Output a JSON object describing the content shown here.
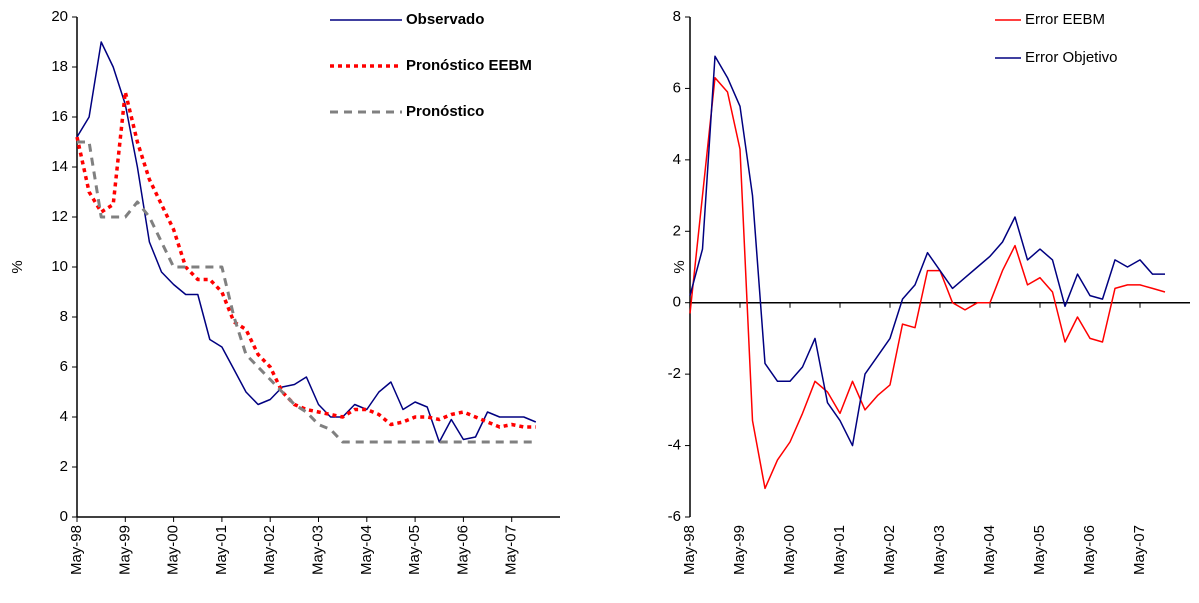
{
  "chart_data": [
    {
      "type": "line",
      "ylabel": "%",
      "categories": [
        "May-98",
        null,
        null,
        null,
        "May-99",
        null,
        null,
        null,
        "May-00",
        null,
        null,
        null,
        "May-01",
        null,
        null,
        null,
        "May-02",
        null,
        null,
        null,
        "May-03",
        null,
        null,
        null,
        "May-04",
        null,
        null,
        null,
        "May-05",
        null,
        null,
        null,
        "May-06",
        null,
        null,
        null,
        "May-07",
        null,
        null
      ],
      "ylim": [
        0,
        20
      ],
      "yticks": [
        0,
        2,
        4,
        6,
        8,
        10,
        12,
        14,
        16,
        18,
        20
      ],
      "legend": "upper center",
      "legend_bold": true,
      "series": [
        {
          "name": "Observado",
          "color": "#000080",
          "line_style": "solid",
          "values": [
            15.2,
            16,
            19,
            18,
            16.5,
            14,
            11,
            9.8,
            9.3,
            8.9,
            8.9,
            7.1,
            6.8,
            5.9,
            5.0,
            4.5,
            4.7,
            5.2,
            5.3,
            5.6,
            4.5,
            4.0,
            4.0,
            4.5,
            4.3,
            5.0,
            5.4,
            4.3,
            4.6,
            4.4,
            3.0,
            3.9,
            3.1,
            3.2,
            4.2,
            4.0,
            4.0,
            4.0,
            3.8
          ]
        },
        {
          "name": "Pronóstico EEBM",
          "color": "#ff0000",
          "line_style": "dotted",
          "values": [
            15.2,
            13,
            12.2,
            12.5,
            17,
            15,
            13.5,
            12.5,
            11.5,
            10,
            9.5,
            9.5,
            9,
            7.8,
            7.5,
            6.5,
            6.0,
            5.0,
            4.5,
            4.3,
            4.2,
            4.1,
            4.0,
            4.3,
            4.3,
            4.1,
            3.7,
            3.8,
            4.0,
            4.0,
            3.9,
            4.1,
            4.2,
            4.0,
            3.8,
            3.6,
            3.7,
            3.6,
            3.6
          ]
        },
        {
          "name": "Pronóstico",
          "color": "#808080",
          "line_style": "dashed",
          "values": [
            15,
            15,
            12,
            12,
            12,
            12.6,
            12,
            11,
            10,
            10,
            10,
            10,
            10,
            8,
            6.5,
            6,
            5.5,
            5,
            4.5,
            4.2,
            3.7,
            3.5,
            3.0,
            3.0,
            3.0,
            3.0,
            3.0,
            3.0,
            3.0,
            3.0,
            3.0,
            3.0,
            3.0,
            3.0,
            3.0,
            3.0,
            3.0,
            3.0,
            3.0
          ]
        }
      ]
    },
    {
      "type": "line",
      "ylabel": "%",
      "categories": [
        "May-98",
        null,
        null,
        null,
        "May-99",
        null,
        null,
        null,
        "May-00",
        null,
        null,
        null,
        "May-01",
        null,
        null,
        null,
        "May-02",
        null,
        null,
        null,
        "May-03",
        null,
        null,
        null,
        "May-04",
        null,
        null,
        null,
        "May-05",
        null,
        null,
        null,
        "May-06",
        null,
        null,
        null,
        "May-07",
        null,
        null
      ],
      "ylim": [
        -6,
        8
      ],
      "yticks": [
        -6,
        -4,
        -2,
        0,
        2,
        4,
        6,
        8
      ],
      "legend": "upper right",
      "legend_bold": false,
      "series": [
        {
          "name": "Error EEBM",
          "color": "#ff0000",
          "line_style": "solid",
          "values": [
            -0.3,
            3,
            6.3,
            5.9,
            4.3,
            -3.3,
            -5.2,
            -4.4,
            -3.9,
            -3.1,
            -2.2,
            -2.5,
            -3.1,
            -2.2,
            -3.0,
            -2.6,
            -2.3,
            -0.6,
            -0.7,
            0.9,
            0.9,
            0.0,
            -0.2,
            0.0,
            0.0,
            0.9,
            1.6,
            0.5,
            0.7,
            0.3,
            -1.1,
            -0.4,
            -1.0,
            -1.1,
            0.4,
            0.5,
            0.5,
            0.4,
            0.3
          ]
        },
        {
          "name": "Error Objetivo",
          "color": "#000080",
          "line_style": "solid",
          "values": [
            0.2,
            1.5,
            6.9,
            6.3,
            5.5,
            3.0,
            -1.7,
            -2.2,
            -2.2,
            -1.8,
            -1.0,
            -2.8,
            -3.3,
            -4.0,
            -2.0,
            -1.5,
            -1.0,
            0.1,
            0.5,
            1.4,
            0.9,
            0.4,
            0.7,
            1.0,
            1.3,
            1.7,
            2.4,
            1.2,
            1.5,
            1.2,
            -0.1,
            0.8,
            0.2,
            0.1,
            1.2,
            1.0,
            1.2,
            0.8,
            0.8
          ]
        }
      ]
    }
  ]
}
